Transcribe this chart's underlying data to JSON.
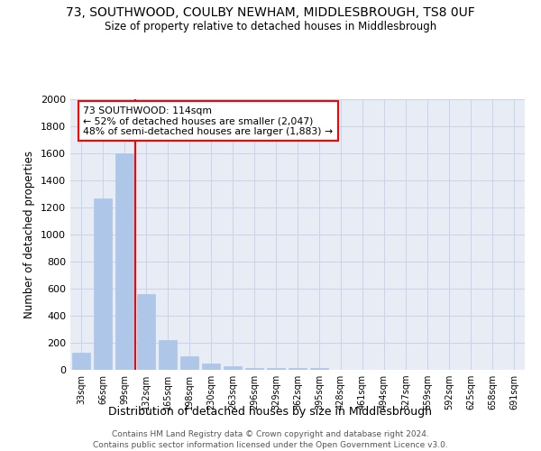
{
  "title": "73, SOUTHWOOD, COULBY NEWHAM, MIDDLESBROUGH, TS8 0UF",
  "subtitle": "Size of property relative to detached houses in Middlesbrough",
  "xlabel": "Distribution of detached houses by size in Middlesbrough",
  "ylabel": "Number of detached properties",
  "footer_line1": "Contains HM Land Registry data © Crown copyright and database right 2024.",
  "footer_line2": "Contains public sector information licensed under the Open Government Licence v3.0.",
  "categories": [
    "33sqm",
    "66sqm",
    "99sqm",
    "132sqm",
    "165sqm",
    "198sqm",
    "230sqm",
    "263sqm",
    "296sqm",
    "329sqm",
    "362sqm",
    "395sqm",
    "428sqm",
    "461sqm",
    "494sqm",
    "527sqm",
    "559sqm",
    "592sqm",
    "625sqm",
    "658sqm",
    "691sqm"
  ],
  "values": [
    130,
    1270,
    1600,
    560,
    220,
    100,
    50,
    25,
    15,
    15,
    15,
    15,
    0,
    0,
    0,
    0,
    0,
    0,
    0,
    0,
    0
  ],
  "bar_color": "#aec6e8",
  "bar_edge_color": "#aec6e8",
  "grid_color": "#c8d4e8",
  "background_color": "#e8edf5",
  "red_line_x": 2.5,
  "annotation_text_line1": "73 SOUTHWOOD: 114sqm",
  "annotation_text_line2": "← 52% of detached houses are smaller (2,047)",
  "annotation_text_line3": "48% of semi-detached houses are larger (1,883) →",
  "ylim": [
    0,
    2000
  ],
  "yticks": [
    0,
    200,
    400,
    600,
    800,
    1000,
    1200,
    1400,
    1600,
    1800,
    2000
  ]
}
